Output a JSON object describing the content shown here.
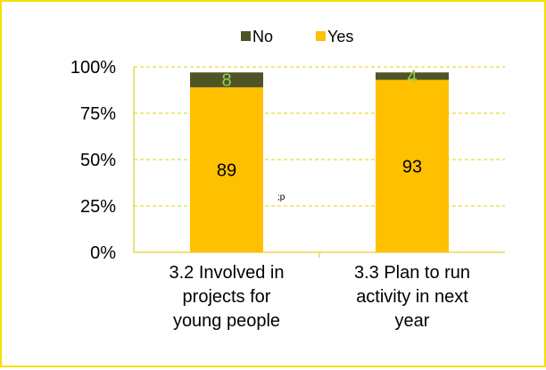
{
  "chart_data": {
    "type": "bar",
    "stacked": true,
    "percent_stacked": true,
    "categories": [
      [
        "3.2 Involved in",
        "projects for",
        "young people"
      ],
      [
        "3.3 Plan to run",
        "activity in next",
        "year"
      ]
    ],
    "series": [
      {
        "name": "Yes",
        "values": [
          89,
          93
        ],
        "color": "#ffc000",
        "label_color": "#000000"
      },
      {
        "name": "No",
        "values": [
          8,
          4
        ],
        "color": "#4f5427",
        "label_color": "#92d050"
      }
    ],
    "legend_order": [
      "No",
      "Yes"
    ],
    "legend": "top",
    "y_ticks": [
      "0%",
      "25%",
      "50%",
      "75%",
      "100%"
    ],
    "ylim": [
      0,
      100
    ],
    "grid": true,
    "grid_color": "#e4d200",
    "annotation": ";p"
  }
}
